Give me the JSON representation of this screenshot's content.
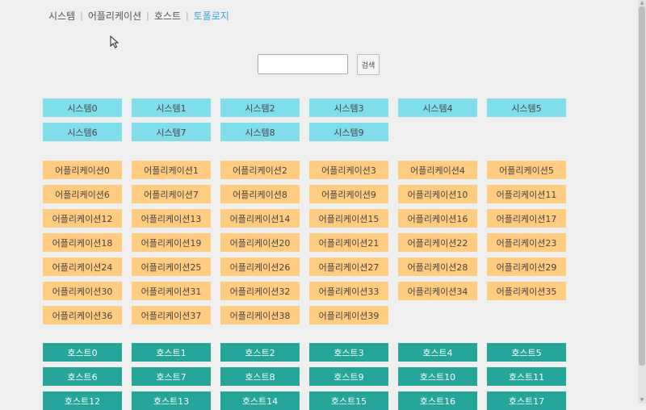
{
  "nav": {
    "tabs": [
      {
        "label": "시스템"
      },
      {
        "label": "어플리케이션"
      },
      {
        "label": "호스트"
      },
      {
        "label": "토폴로지"
      }
    ],
    "separator": "|",
    "active_tab": "토폴로지"
  },
  "search": {
    "value": "",
    "placeholder": "",
    "button_label": "검색"
  },
  "groups": {
    "systems": [
      "시스템0",
      "시스템1",
      "시스템2",
      "시스템3",
      "시스템4",
      "시스템5",
      "시스템6",
      "시스템7",
      "시스템8",
      "시스템9"
    ],
    "applications": [
      "어플리케이션0",
      "어플리케이션1",
      "어플리케이션2",
      "어플리케이션3",
      "어플리케이션4",
      "어플리케이션5",
      "어플리케이션6",
      "어플리케이션7",
      "어플리케이션8",
      "어플리케이션9",
      "어플리케이션10",
      "어플리케이션11",
      "어플리케이션12",
      "어플리케이션13",
      "어플리케이션14",
      "어플리케이션15",
      "어플리케이션16",
      "어플리케이션17",
      "어플리케이션18",
      "어플리케이션19",
      "어플리케이션20",
      "어플리케이션21",
      "어플리케이션22",
      "어플리케이션23",
      "어플리케이션24",
      "어플리케이션25",
      "어플리케이션26",
      "어플리케이션27",
      "어플리케이션28",
      "어플리케이션29",
      "어플리케이션30",
      "어플리케이션31",
      "어플리케이션32",
      "어플리케이션33",
      "어플리케이션34",
      "어플리케이션35",
      "어플리케이션36",
      "어플리케이션37",
      "어플리케이션38",
      "어플리케이션39"
    ],
    "hosts": [
      "호스트0",
      "호스트1",
      "호스트2",
      "호스트3",
      "호스트4",
      "호스트5",
      "호스트6",
      "호스트7",
      "호스트8",
      "호스트9",
      "호스트10",
      "호스트11",
      "호스트12",
      "호스트13",
      "호스트14",
      "호스트15",
      "호스트16",
      "호스트17"
    ]
  },
  "colors": {
    "system": "#80deea",
    "application": "#ffcc80",
    "host": "#26a69a",
    "active_tab": "#3aa6d8"
  },
  "icons": {
    "cursor": "mouse-pointer-icon"
  }
}
